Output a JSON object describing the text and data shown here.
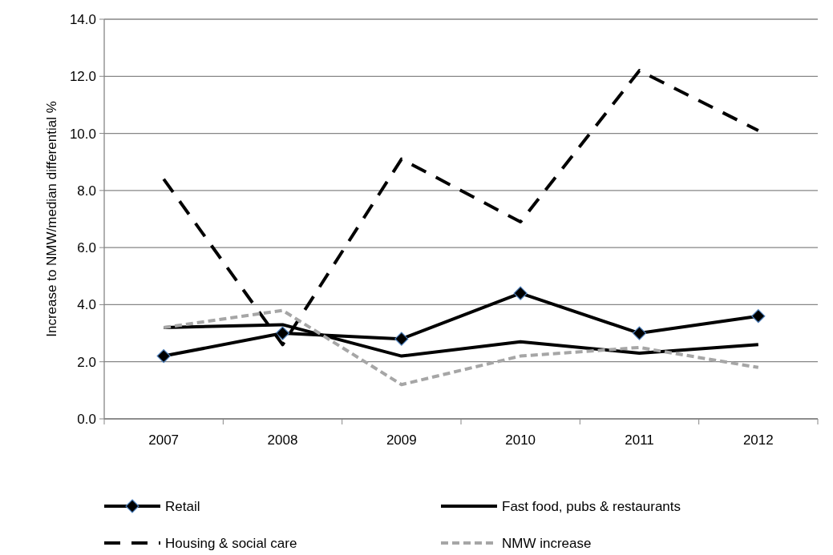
{
  "chart_data": {
    "type": "line",
    "ylabel": "Increase to NMW/median differential %",
    "categories": [
      "2007",
      "2008",
      "2009",
      "2010",
      "2011",
      "2012"
    ],
    "ylim": [
      0,
      14
    ],
    "yticks": [
      {
        "value": 0,
        "label": "0.0"
      },
      {
        "value": 2,
        "label": "2.0"
      },
      {
        "value": 4,
        "label": "4.0"
      },
      {
        "value": 6,
        "label": "6.0"
      },
      {
        "value": 8,
        "label": "8.0"
      },
      {
        "value": 10,
        "label": "10.0"
      },
      {
        "value": 12,
        "label": "12.0"
      },
      {
        "value": 14,
        "label": "14.0"
      }
    ],
    "grid": "y",
    "legend": "bottom",
    "series": [
      {
        "name": "Retail",
        "color": "#000000",
        "values": [
          2.2,
          3.0,
          2.8,
          4.4,
          3.0,
          3.6
        ],
        "marker": "diamond",
        "line_style": "solid"
      },
      {
        "name": "Fast food, pubs & restaurants",
        "color": "#000000",
        "values": [
          3.2,
          3.3,
          2.2,
          2.7,
          2.3,
          2.6
        ],
        "marker": "none",
        "line_style": "solid"
      },
      {
        "name": "Housing & social care",
        "color": "#000000",
        "values": [
          8.4,
          2.6,
          9.1,
          6.9,
          12.2,
          10.1
        ],
        "marker": "none",
        "line_style": "dashed"
      },
      {
        "name": "NMW increase",
        "color": "#a6a6a6",
        "values": [
          3.2,
          3.8,
          1.2,
          2.2,
          2.5,
          1.8
        ],
        "marker": "none",
        "line_style": "dotted"
      }
    ]
  }
}
